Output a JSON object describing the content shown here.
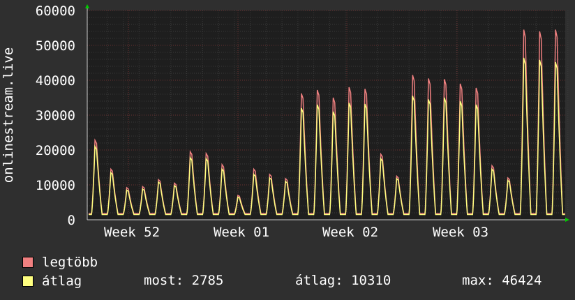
{
  "chart_data": {
    "type": "line",
    "title": "",
    "ylabel": "onlinestream.live",
    "xlabel": "",
    "ylim": [
      0,
      60000
    ],
    "y_ticks": [
      0,
      10000,
      20000,
      30000,
      40000,
      50000,
      60000
    ],
    "x_tick_labels": [
      "Week 52",
      "Week 01",
      "Week 02",
      "Week 03"
    ],
    "grid": true,
    "background": "#1e1e1e",
    "day_peaks": [
      {
        "max": 22800,
        "avg": 21000
      },
      {
        "max": 14500,
        "avg": 13500
      },
      {
        "max": 9200,
        "avg": 8500
      },
      {
        "max": 9500,
        "avg": 8800
      },
      {
        "max": 11500,
        "avg": 10800
      },
      {
        "max": 10500,
        "avg": 9800
      },
      {
        "max": 19500,
        "avg": 17800
      },
      {
        "max": 19000,
        "avg": 17500
      },
      {
        "max": 15800,
        "avg": 14500
      },
      {
        "max": 7000,
        "avg": 6500
      },
      {
        "max": 14500,
        "avg": 13000
      },
      {
        "max": 13000,
        "avg": 12000
      },
      {
        "max": 11800,
        "avg": 11000
      },
      {
        "max": 36200,
        "avg": 32000
      },
      {
        "max": 37200,
        "avg": 33000
      },
      {
        "max": 35000,
        "avg": 31000
      },
      {
        "max": 38000,
        "avg": 33500
      },
      {
        "max": 37500,
        "avg": 33200
      },
      {
        "max": 18800,
        "avg": 17500
      },
      {
        "max": 12500,
        "avg": 11800
      },
      {
        "max": 41500,
        "avg": 35500
      },
      {
        "max": 40500,
        "avg": 34500
      },
      {
        "max": 40300,
        "avg": 35000
      },
      {
        "max": 39000,
        "avg": 34000
      },
      {
        "max": 37800,
        "avg": 33000
      },
      {
        "max": 15500,
        "avg": 14500
      },
      {
        "max": 12000,
        "avg": 11300
      },
      {
        "max": 54500,
        "avg": 46424
      },
      {
        "max": 54000,
        "avg": 45800
      },
      {
        "max": 54500,
        "avg": 45200
      }
    ],
    "series": [
      {
        "name": "legtöbb",
        "color": "#f08080"
      },
      {
        "name": "átlag",
        "color": "#ffff80"
      }
    ]
  },
  "stats": {
    "now": "most: 2785",
    "avg": "átlag: 10310",
    "max": "max: 46424"
  }
}
